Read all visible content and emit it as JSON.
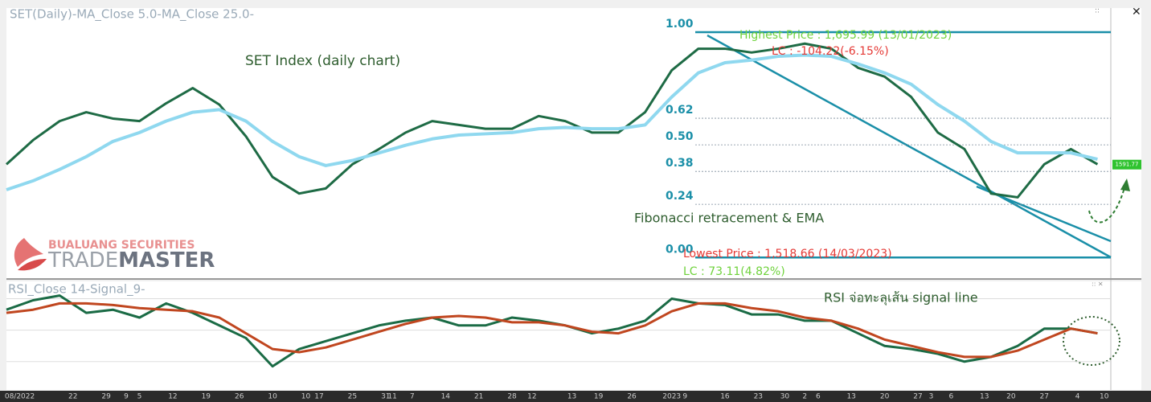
{
  "chart_data": [
    {
      "type": "line",
      "title": "SET(Daily)-MA_Close 5.0-MA_Close 25.0-",
      "x": [
        0,
        4,
        8,
        12,
        16,
        20,
        24,
        28,
        32,
        36,
        40,
        44,
        48,
        52,
        56,
        60,
        64,
        68,
        72,
        76,
        80,
        84,
        88,
        92,
        96,
        100,
        104,
        108,
        112,
        116,
        120,
        124,
        128,
        132,
        136,
        140,
        144,
        148,
        152,
        156,
        160,
        164
      ],
      "xlim": [
        0,
        166
      ],
      "ylim": [
        1503,
        1715
      ],
      "series": [
        {
          "color": "#1e6b45",
          "values": [
            1592,
            1611,
            1626,
            1633,
            1628,
            1626,
            1640,
            1652,
            1639,
            1614,
            1582,
            1569,
            1573,
            1592,
            1604,
            1617,
            1626,
            1623,
            1620,
            1620,
            1630,
            1626,
            1617,
            1617,
            1633,
            1666,
            1683,
            1683,
            1680,
            1683,
            1687,
            1683,
            1668,
            1661,
            1645,
            1617,
            1604,
            1569,
            1566,
            1592,
            1604,
            1592
          ]
        },
        {
          "color": "#8fd8ef",
          "values": [
            1572,
            1579,
            1588,
            1598,
            1610,
            1617,
            1626,
            1633,
            1635,
            1626,
            1610,
            1598,
            1591,
            1595,
            1601,
            1607,
            1612,
            1615,
            1616,
            1617,
            1620,
            1621,
            1620,
            1620,
            1623,
            1645,
            1664,
            1672,
            1674,
            1677,
            1678,
            1677,
            1671,
            1664,
            1655,
            1639,
            1626,
            1610,
            1601,
            1601,
            1601,
            1596
          ]
        }
      ],
      "fibonacci": {
        "high": 1695.99,
        "low": 1518.66,
        "color": "#1a8fa8",
        "levels": [
          {
            "value": 1,
            "label": "1.00"
          },
          {
            "value": 0.618,
            "label": "0.62"
          },
          {
            "value": 0.5,
            "label": "0.50"
          },
          {
            "value": 0.382,
            "label": "0.38"
          },
          {
            "value": 0.236,
            "label": "0.24"
          },
          {
            "value": 0,
            "label": "0.00"
          }
        ]
      },
      "annotations": [
        {
          "text": "SET Index (daily chart)",
          "color": "#2e5d2e"
        },
        {
          "text": "Fibonacci retracement & EMA",
          "color": "#2e5d2e"
        },
        {
          "text": "Highest Price : 1,695.99 (13/01/2023)",
          "color": "#6fd23c"
        },
        {
          "text": "LC : -104.22(-6.15%)",
          "color": "#e53935"
        },
        {
          "text": "Lowest Price : 1,518.66 (14/03/2023)",
          "color": "#e53935"
        },
        {
          "text": "LC : 73.11(4.82%)",
          "color": "#6fd23c"
        }
      ],
      "last_price": 1591.77
    },
    {
      "type": "line",
      "title": "RSI_Close 14-Signal_9-",
      "x": [
        0,
        4,
        8,
        12,
        16,
        20,
        24,
        28,
        32,
        36,
        40,
        44,
        48,
        52,
        56,
        60,
        64,
        68,
        72,
        76,
        80,
        84,
        88,
        92,
        96,
        100,
        104,
        108,
        112,
        116,
        120,
        124,
        128,
        132,
        136,
        140,
        144,
        148,
        152,
        156,
        160,
        164
      ],
      "xlim": [
        0,
        166
      ],
      "ylim": [
        12,
        81
      ],
      "levels": [
        30,
        50,
        70
      ],
      "xticks": [
        {
          "value": 2,
          "label": "08/2022"
        },
        {
          "value": 10,
          "label": "22"
        },
        {
          "value": 15,
          "label": "29"
        },
        {
          "value": 18,
          "label": "9"
        },
        {
          "value": 20,
          "label": "5"
        },
        {
          "value": 25,
          "label": "12"
        },
        {
          "value": 30,
          "label": "19"
        },
        {
          "value": 35,
          "label": "26"
        },
        {
          "value": 40,
          "label": "10"
        },
        {
          "value": 45,
          "label": "10"
        },
        {
          "value": 47,
          "label": "17"
        },
        {
          "value": 52,
          "label": "25"
        },
        {
          "value": 57,
          "label": "31"
        },
        {
          "value": 58,
          "label": "11"
        },
        {
          "value": 61,
          "label": "7"
        },
        {
          "value": 66,
          "label": "14"
        },
        {
          "value": 71,
          "label": "21"
        },
        {
          "value": 76,
          "label": "28"
        },
        {
          "value": 79,
          "label": "12"
        },
        {
          "value": 85,
          "label": "13"
        },
        {
          "value": 89,
          "label": "19"
        },
        {
          "value": 94,
          "label": "26"
        },
        {
          "value": 100,
          "label": "2023"
        },
        {
          "value": 102,
          "label": "9"
        },
        {
          "value": 108,
          "label": "16"
        },
        {
          "value": 113,
          "label": "23"
        },
        {
          "value": 117,
          "label": "30"
        },
        {
          "value": 120,
          "label": "2"
        },
        {
          "value": 122,
          "label": "6"
        },
        {
          "value": 127,
          "label": "13"
        },
        {
          "value": 132,
          "label": "20"
        },
        {
          "value": 137,
          "label": "27"
        },
        {
          "value": 139,
          "label": "3"
        },
        {
          "value": 142,
          "label": "6"
        },
        {
          "value": 147,
          "label": "13"
        },
        {
          "value": 151,
          "label": "20"
        },
        {
          "value": 156,
          "label": "27"
        },
        {
          "value": 161,
          "label": "4"
        },
        {
          "value": 165,
          "label": "10"
        }
      ],
      "series": [
        {
          "color": "#1a6b45",
          "values": [
            63,
            69,
            72,
            61,
            63,
            58,
            67,
            61,
            53,
            45,
            27,
            38,
            43,
            48,
            53,
            56,
            58,
            53,
            53,
            58,
            56,
            53,
            48,
            51,
            56,
            70,
            67,
            66,
            60,
            60,
            56,
            56,
            48,
            40,
            38,
            35,
            30,
            33,
            40,
            51,
            51,
            48
          ]
        },
        {
          "color": "#c0461f",
          "values": [
            61,
            63,
            67,
            67,
            66,
            64,
            63,
            62,
            58,
            48,
            38,
            36,
            39,
            44,
            49,
            54,
            58,
            59,
            58,
            55,
            55,
            53,
            49,
            48,
            53,
            62,
            67,
            67,
            64,
            62,
            58,
            56,
            51,
            44,
            40,
            36,
            33,
            33,
            37,
            44,
            51,
            48
          ]
        }
      ],
      "annotations": [
        {
          "text": "RSI จ่อทะลุเส้น signal line",
          "color": "#2e5d2e"
        }
      ]
    }
  ],
  "logo": {
    "company": "BUALUANG SECURITIES",
    "brand_a": "TRADE",
    "brand_b": "MASTER"
  }
}
